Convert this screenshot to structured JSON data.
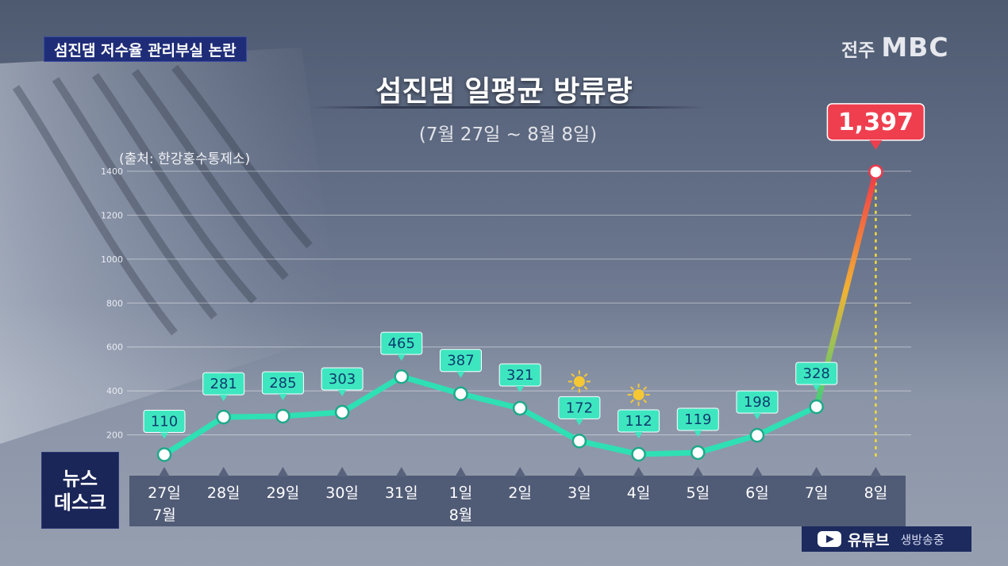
{
  "topic": "섬진댐 저수율 관리부실 논란",
  "logo": {
    "region": "전주",
    "brand": "MBC"
  },
  "news_badge": {
    "line1": "뉴스",
    "line2": "데스크"
  },
  "youtube": {
    "label": "유튜브",
    "status": "생방송중"
  },
  "colors": {
    "line": "#2ee0b4",
    "spike_start": "#3fd07a",
    "spike_mid": "#f2b233",
    "spike_end": "#f0384a",
    "label_bg": "#3ee6c0",
    "label_text": "#0d3b6e",
    "peak_bg": "#ef3e4e"
  },
  "chart_data": {
    "type": "line",
    "title": "섬진댐 일평균 방류량",
    "subtitle": "(7월 27일 ~ 8월 8일)",
    "source": "(출처: 한강홍수통제소)",
    "x": [
      "27일",
      "28일",
      "29일",
      "30일",
      "31일",
      "1일",
      "2일",
      "3일",
      "4일",
      "5일",
      "6일",
      "7일",
      "8일"
    ],
    "x_month_labels": [
      {
        "under": "27일",
        "label": "7월"
      },
      {
        "under": "1일",
        "label": "8월"
      }
    ],
    "values": [
      110,
      281,
      285,
      303,
      465,
      387,
      321,
      172,
      112,
      119,
      198,
      328,
      1397
    ],
    "value_labels": [
      "110",
      "281",
      "285",
      "303",
      "465",
      "387",
      "321",
      "172",
      "112",
      "119",
      "198",
      "328",
      "1,397"
    ],
    "sun_icons_at": [
      "3일",
      "4일"
    ],
    "y_ticks": [
      200,
      400,
      600,
      800,
      1000,
      1200,
      1400
    ],
    "ylim": [
      0,
      1400
    ],
    "grid": true,
    "highlight": {
      "at": "8일",
      "label": "1,397"
    }
  }
}
